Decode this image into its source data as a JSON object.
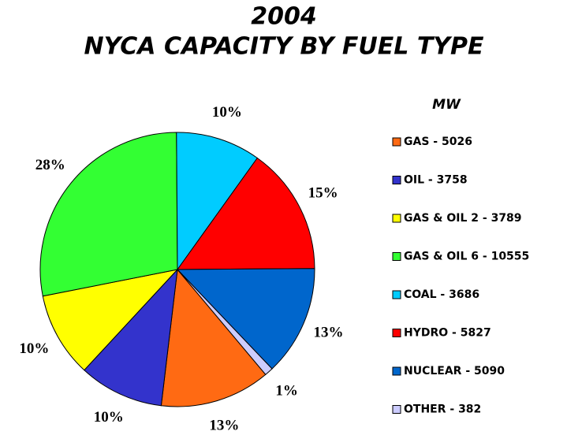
{
  "chart_data": {
    "type": "pie",
    "title": [
      "2004",
      "NYCA CAPACITY BY FUEL TYPE"
    ],
    "legend_title": "MW",
    "categories": [
      "GAS - 5026",
      "OIL - 3758",
      "GAS & OIL 2 - 3789",
      "GAS & OIL 6 - 10555",
      "COAL - 3686",
      "HYDRO - 5827",
      "NUCLEAR - 5090",
      "OTHER - 382"
    ],
    "values": [
      13,
      10,
      10,
      28,
      10,
      15,
      13,
      1
    ],
    "value_labels": [
      "13%",
      "10%",
      "10%",
      "28%",
      "10%",
      "15%",
      "13%",
      "1%"
    ],
    "colors": [
      "#ff6a13",
      "#3333cc",
      "#ffff00",
      "#33ff33",
      "#00ccff",
      "#ff0000",
      "#0066cc",
      "#ccccff"
    ],
    "startangle": 140,
    "legend": "right"
  }
}
